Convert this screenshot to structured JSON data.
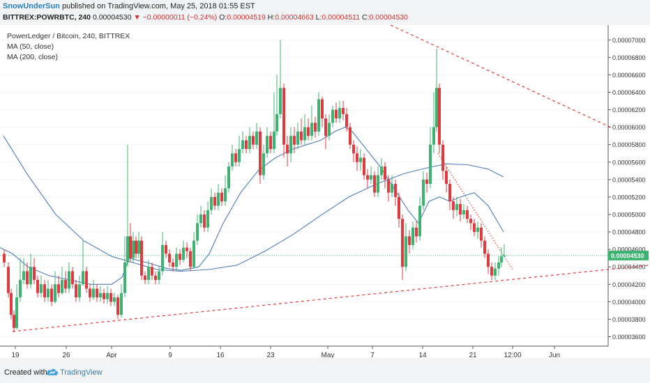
{
  "header": {
    "author": "SnowUnderSun",
    "published": "published on TradingView.com, May 25, 2018 01:55 EST",
    "symbol": "BITTREX:POWRBTC, 240",
    "last": "0.00004530",
    "change": "▼ −0.00000011 (−0.24%)",
    "o_label": "O:",
    "o_value": "0.00004519",
    "h_label": "H:",
    "h_value": "0.00004663",
    "l_label": "L:",
    "l_value": "0.00004511",
    "c_label": "C:",
    "c_value": "0.00004530"
  },
  "legend": {
    "title": "PowerLedger / Bitcoin, 240, BITTREX",
    "ma50": "MA (50, close)",
    "ma200": "MA (200, close)"
  },
  "footer": {
    "created_with": "Created with",
    "brand": "TradingView"
  },
  "colors": {
    "up": "#3cb371",
    "down": "#e0393e",
    "ma": "#4f7cba",
    "trend": "#e53935",
    "price_tag": "#3cb371"
  },
  "chart_data": {
    "type": "candlestick",
    "title": "PowerLedger / Bitcoin, 240, BITTREX",
    "x_ticks": [
      "19",
      "26",
      "Apr",
      "9",
      "16",
      "23",
      "May",
      "7",
      "14",
      "21",
      "12:00",
      "Jun"
    ],
    "y_ticks": [
      "0.00007000",
      "0.00006800",
      "0.00006600",
      "0.00006400",
      "0.00006200",
      "0.00006000",
      "0.00005800",
      "0.00005600",
      "0.00005400",
      "0.00005200",
      "0.00005000",
      "0.00004800",
      "0.00004600",
      "0.00004400",
      "0.00004200",
      "0.00004000",
      "0.00003800",
      "0.00003600"
    ],
    "ylim": [
      3.5e-05,
      7.17e-05
    ],
    "current_price": "0.00004530",
    "ma50": [
      [
        0,
        4.62e-05
      ],
      [
        18,
        4.55e-05
      ],
      [
        40,
        4.4e-05
      ],
      [
        70,
        4.3e-05
      ],
      [
        100,
        4.25e-05
      ],
      [
        130,
        4.2e-05
      ],
      [
        160,
        4.2e-05
      ],
      [
        175,
        4.28e-05
      ],
      [
        185,
        4.5e-05
      ],
      [
        210,
        4.45e-05
      ],
      [
        240,
        4.38e-05
      ],
      [
        260,
        4.36e-05
      ],
      [
        285,
        4.4e-05
      ],
      [
        300,
        4.55e-05
      ],
      [
        320,
        4.9e-05
      ],
      [
        345,
        5.25e-05
      ],
      [
        370,
        5.5e-05
      ],
      [
        395,
        5.65e-05
      ],
      [
        420,
        5.75e-05
      ],
      [
        440,
        5.8e-05
      ],
      [
        460,
        5.85e-05
      ],
      [
        480,
        5.95e-05
      ],
      [
        495,
        6e-05
      ],
      [
        505,
        5.95e-05
      ],
      [
        525,
        5.75e-05
      ],
      [
        545,
        5.55e-05
      ],
      [
        565,
        5.3e-05
      ],
      [
        585,
        5.05e-05
      ],
      [
        600,
        4.9e-05
      ],
      [
        615,
        5.15e-05
      ],
      [
        630,
        5.2e-05
      ],
      [
        645,
        5.15e-05
      ],
      [
        660,
        5.2e-05
      ],
      [
        680,
        5.25e-05
      ],
      [
        700,
        5.1e-05
      ],
      [
        722,
        4.8e-05
      ]
    ],
    "ma200": [
      [
        5,
        5.9e-05
      ],
      [
        40,
        5.45e-05
      ],
      [
        80,
        5e-05
      ],
      [
        120,
        4.7e-05
      ],
      [
        160,
        4.52e-05
      ],
      [
        190,
        4.45e-05
      ],
      [
        225,
        4.37e-05
      ],
      [
        260,
        4.35e-05
      ],
      [
        300,
        4.37e-05
      ],
      [
        340,
        4.42e-05
      ],
      [
        380,
        4.58e-05
      ],
      [
        420,
        4.77e-05
      ],
      [
        460,
        4.99e-05
      ],
      [
        500,
        5.2e-05
      ],
      [
        540,
        5.35e-05
      ],
      [
        580,
        5.47e-05
      ],
      [
        610,
        5.53e-05
      ],
      [
        640,
        5.58e-05
      ],
      [
        670,
        5.57e-05
      ],
      [
        700,
        5.52e-05
      ],
      [
        722,
        5.43e-05
      ]
    ],
    "trend_lower": [
      [
        18,
        3.66e-05
      ],
      [
        932,
        4.42e-05
      ]
    ],
    "trend_upper": [
      [
        560,
        7.17e-05
      ],
      [
        878,
        5.99e-05
      ]
    ],
    "trend_local": [
      [
        628,
        5.7e-05
      ],
      [
        735,
        4.37e-05
      ]
    ],
    "candles": [
      [
        6,
        4.55e-05,
        4.45e-05,
        4.6e-05,
        4.4e-05
      ],
      [
        12,
        4.4e-05,
        4.1e-05,
        4.45e-05,
        4.05e-05
      ],
      [
        16,
        4.1e-05,
        3.85e-05,
        4.15e-05,
        3.8e-05
      ],
      [
        20,
        3.85e-05,
        3.7e-05,
        3.9e-05,
        3.65e-05
      ],
      [
        24,
        3.7e-05,
        4.05e-05,
        4.2e-05,
        3.68e-05
      ],
      [
        29,
        4.05e-05,
        4.25e-05,
        4.5e-05,
        4e-05
      ],
      [
        34,
        4.25e-05,
        4.35e-05,
        4.5e-05,
        4.2e-05
      ],
      [
        39,
        4.35e-05,
        4.2e-05,
        4.45e-05,
        4.15e-05
      ],
      [
        44,
        4.2e-05,
        4.4e-05,
        4.55e-05,
        4.15e-05
      ],
      [
        49,
        4.4e-05,
        4.25e-05,
        4.5e-05,
        4.2e-05
      ],
      [
        54,
        4.25e-05,
        4.1e-05,
        4.3e-05,
        4.05e-05
      ],
      [
        59,
        4.1e-05,
        4.2e-05,
        4.3e-05,
        4.05e-05
      ],
      [
        64,
        4.2e-05,
        4.05e-05,
        4.25e-05,
        4e-05
      ],
      [
        69,
        4.05e-05,
        4.15e-05,
        4.25e-05,
        4e-05
      ],
      [
        74,
        4.15e-05,
        4e-05,
        4.2e-05,
        3.95e-05
      ],
      [
        79,
        4e-05,
        4.2e-05,
        4.35e-05,
        3.98e-05
      ],
      [
        84,
        4.2e-05,
        4.1e-05,
        4.3e-05,
        4.05e-05
      ],
      [
        89,
        4.1e-05,
        4.25e-05,
        4.4e-05,
        4.08e-05
      ],
      [
        94,
        4.25e-05,
        4.15e-05,
        4.35e-05,
        4.1e-05
      ],
      [
        99,
        4.15e-05,
        4.35e-05,
        4.45e-05,
        4.1e-05
      ],
      [
        104,
        4.35e-05,
        4.2e-05,
        4.4e-05,
        4.15e-05
      ],
      [
        109,
        4.2e-05,
        4.05e-05,
        4.25e-05,
        4e-05
      ],
      [
        114,
        4.05e-05,
        4.2e-05,
        4.3e-05,
        4e-05
      ],
      [
        119,
        4.2e-05,
        4.35e-05,
        4.7e-05,
        4.18e-05
      ],
      [
        124,
        4.35e-05,
        4.15e-05,
        4.4e-05,
        4.1e-05
      ],
      [
        129,
        4.15e-05,
        4.05e-05,
        4.2e-05,
        4e-05
      ],
      [
        134,
        4.05e-05,
        4.15e-05,
        4.25e-05,
        4.02e-05
      ],
      [
        139,
        4.15e-05,
        4.05e-05,
        4.2e-05,
        4e-05
      ],
      [
        144,
        4.05e-05,
        4.1e-05,
        4.18e-05,
        4e-05
      ],
      [
        149,
        4.1e-05,
        4.03e-05,
        4.15e-05,
        3.98e-05
      ],
      [
        154,
        4.03e-05,
        4.1e-05,
        4.18e-05,
        3.98e-05
      ],
      [
        159,
        4.1e-05,
        4e-05,
        4.15e-05,
        3.95e-05
      ],
      [
        164,
        4e-05,
        4.05e-05,
        4.1e-05,
        3.95e-05
      ],
      [
        169,
        4.05e-05,
        3.85e-05,
        4.08e-05,
        3.8e-05
      ],
      [
        174,
        3.85e-05,
        4.1e-05,
        4.2e-05,
        3.82e-05
      ],
      [
        179,
        4.1e-05,
        4.45e-05,
        4.75e-05,
        4.05e-05
      ],
      [
        183,
        4.45e-05,
        4.75e-05,
        5.8e-05,
        4.4e-05
      ],
      [
        187,
        4.75e-05,
        4.5e-05,
        4.9e-05,
        4.45e-05
      ],
      [
        191,
        4.5e-05,
        4.7e-05,
        4.8e-05,
        4.45e-05
      ],
      [
        195,
        4.7e-05,
        4.55e-05,
        4.75e-05,
        4.5e-05
      ],
      [
        199,
        4.55e-05,
        4.7e-05,
        4.8e-05,
        4.5e-05
      ],
      [
        203,
        4.7e-05,
        4.3e-05,
        4.75e-05,
        4.25e-05
      ],
      [
        208,
        4.3e-05,
        4.25e-05,
        4.35e-05,
        4.2e-05
      ],
      [
        213,
        4.25e-05,
        4.4e-05,
        4.48e-05,
        4.2e-05
      ],
      [
        218,
        4.4e-05,
        4.3e-05,
        4.45e-05,
        4.25e-05
      ],
      [
        223,
        4.3e-05,
        4.25e-05,
        4.35e-05,
        4.2e-05
      ],
      [
        228,
        4.25e-05,
        4.35e-05,
        4.4e-05,
        4.2e-05
      ],
      [
        233,
        4.35e-05,
        4.65e-05,
        4.8e-05,
        4.3e-05
      ],
      [
        238,
        4.65e-05,
        4.55e-05,
        4.7e-05,
        4.5e-05
      ],
      [
        243,
        4.55e-05,
        4.45e-05,
        4.6e-05,
        4.4e-05
      ],
      [
        248,
        4.45e-05,
        4.4e-05,
        4.5e-05,
        4.35e-05
      ],
      [
        253,
        4.4e-05,
        4.55e-05,
        4.62e-05,
        4.35e-05
      ],
      [
        258,
        4.55e-05,
        4.48e-05,
        4.6e-05,
        4.42e-05
      ],
      [
        263,
        4.48e-05,
        4.62e-05,
        4.7e-05,
        4.45e-05
      ],
      [
        268,
        4.62e-05,
        4.58e-05,
        4.68e-05,
        4.5e-05
      ],
      [
        273,
        4.58e-05,
        4.4e-05,
        4.62e-05,
        4.35e-05
      ],
      [
        278,
        4.4e-05,
        4.7e-05,
        4.8e-05,
        4.38e-05
      ],
      [
        283,
        4.7e-05,
        4.9e-05,
        5e-05,
        4.65e-05
      ],
      [
        288,
        4.9e-05,
        5e-05,
        5.1e-05,
        4.85e-05
      ],
      [
        293,
        5e-05,
        4.85e-05,
        5.05e-05,
        4.8e-05
      ],
      [
        298,
        4.85e-05,
        5.05e-05,
        5.15e-05,
        4.8e-05
      ],
      [
        303,
        5.05e-05,
        5.2e-05,
        5.3e-05,
        5e-05
      ],
      [
        308,
        5.2e-05,
        5.1e-05,
        5.25e-05,
        5.05e-05
      ],
      [
        313,
        5.1e-05,
        5.25e-05,
        5.35e-05,
        5.05e-05
      ],
      [
        318,
        5.25e-05,
        5.15e-05,
        5.3e-05,
        5.1e-05
      ],
      [
        323,
        5.15e-05,
        5.3e-05,
        5.45e-05,
        5.1e-05
      ],
      [
        328,
        5.3e-05,
        5.55e-05,
        5.6e-05,
        5.25e-05
      ],
      [
        333,
        5.55e-05,
        5.7e-05,
        5.8e-05,
        5.5e-05
      ],
      [
        338,
        5.7e-05,
        5.6e-05,
        5.75e-05,
        5.55e-05
      ],
      [
        343,
        5.6e-05,
        5.75e-05,
        5.9e-05,
        5.55e-05
      ],
      [
        348,
        5.75e-05,
        5.85e-05,
        5.95e-05,
        5.7e-05
      ],
      [
        353,
        5.85e-05,
        5.75e-05,
        5.9e-05,
        5.7e-05
      ],
      [
        358,
        5.75e-05,
        5.9e-05,
        6e-05,
        5.7e-05
      ],
      [
        363,
        5.9e-05,
        5.8e-05,
        5.95e-05,
        5.75e-05
      ],
      [
        368,
        5.8e-05,
        5.95e-05,
        6.05e-05,
        5.75e-05
      ],
      [
        373,
        5.95e-05,
        5.45e-05,
        6e-05,
        5.35e-05
      ],
      [
        378,
        5.45e-05,
        5.7e-05,
        5.8e-05,
        5.4e-05
      ],
      [
        383,
        5.7e-05,
        5.9e-05,
        6e-05,
        5.65e-05
      ],
      [
        388,
        5.9e-05,
        5.75e-05,
        5.95e-05,
        5.7e-05
      ],
      [
        393,
        5.75e-05,
        5.95e-05,
        6.4e-05,
        5.7e-05
      ],
      [
        397,
        5.95e-05,
        6.15e-05,
        6.6e-05,
        5.9e-05
      ],
      [
        402,
        6.15e-05,
        6.45e-05,
        7e-05,
        6.1e-05
      ],
      [
        407,
        6.45e-05,
        5.8e-05,
        6.5e-05,
        5.65e-05
      ],
      [
        412,
        5.8e-05,
        5.7e-05,
        5.9e-05,
        5.55e-05
      ],
      [
        417,
        5.7e-05,
        5.9e-05,
        6e-05,
        5.6e-05
      ],
      [
        422,
        5.9e-05,
        5.8e-05,
        6e-05,
        5.7e-05
      ],
      [
        427,
        5.8e-05,
        5.95e-05,
        6.05e-05,
        5.75e-05
      ],
      [
        432,
        5.95e-05,
        5.85e-05,
        6.1e-05,
        5.8e-05
      ],
      [
        437,
        5.85e-05,
        6e-05,
        6.15e-05,
        5.8e-05
      ],
      [
        442,
        6e-05,
        5.9e-05,
        6.1e-05,
        5.85e-05
      ],
      [
        447,
        5.9e-05,
        6.05e-05,
        6.25e-05,
        5.85e-05
      ],
      [
        452,
        6.05e-05,
        5.95e-05,
        6.12e-05,
        5.88e-05
      ],
      [
        457,
        5.95e-05,
        6.32e-05,
        6.4e-05,
        5.9e-05
      ],
      [
        462,
        6.32e-05,
        6.1e-05,
        6.35e-05,
        6e-05
      ],
      [
        467,
        6.1e-05,
        5.9e-05,
        6.15e-05,
        5.75e-05
      ],
      [
        472,
        5.9e-05,
        6.05e-05,
        6.15e-05,
        5.85e-05
      ],
      [
        477,
        6.05e-05,
        6.2e-05,
        6.25e-05,
        6e-05
      ],
      [
        482,
        6.2e-05,
        6.1e-05,
        6.28e-05,
        6.05e-05
      ],
      [
        487,
        6.1e-05,
        6.22e-05,
        6.3e-05,
        6.05e-05
      ],
      [
        492,
        6.22e-05,
        6.15e-05,
        6.3e-05,
        6.08e-05
      ],
      [
        497,
        6.15e-05,
        6e-05,
        6.22e-05,
        5.95e-05
      ],
      [
        502,
        6e-05,
        5.8e-05,
        6.05e-05,
        5.75e-05
      ],
      [
        507,
        5.8e-05,
        5.7e-05,
        5.85e-05,
        5.6e-05
      ],
      [
        512,
        5.7e-05,
        5.6e-05,
        5.78e-05,
        5.5e-05
      ],
      [
        517,
        5.6e-05,
        5.65e-05,
        5.75e-05,
        5.5e-05
      ],
      [
        522,
        5.65e-05,
        5.45e-05,
        5.7e-05,
        5.4e-05
      ],
      [
        527,
        5.45e-05,
        5.4e-05,
        5.52e-05,
        5.3e-05
      ],
      [
        532,
        5.4e-05,
        5.45e-05,
        5.55e-05,
        5.35e-05
      ],
      [
        537,
        5.45e-05,
        5.25e-05,
        5.5e-05,
        5.2e-05
      ],
      [
        542,
        5.25e-05,
        5.45e-05,
        5.55e-05,
        5.2e-05
      ],
      [
        547,
        5.45e-05,
        5.55e-05,
        5.65e-05,
        5.4e-05
      ],
      [
        552,
        5.55e-05,
        5.4e-05,
        5.6e-05,
        5.3e-05
      ],
      [
        557,
        5.4e-05,
        5.25e-05,
        5.45e-05,
        5.15e-05
      ],
      [
        562,
        5.25e-05,
        5.35e-05,
        5.45e-05,
        5.2e-05
      ],
      [
        567,
        5.35e-05,
        5.2e-05,
        5.4e-05,
        5.1e-05
      ],
      [
        572,
        5.2e-05,
        4.95e-05,
        5.25e-05,
        4.85e-05
      ],
      [
        577,
        4.95e-05,
        4.4e-05,
        5e-05,
        4.25e-05
      ],
      [
        582,
        4.4e-05,
        4.75e-05,
        4.9e-05,
        4.35e-05
      ],
      [
        587,
        4.75e-05,
        4.65e-05,
        4.82e-05,
        4.55e-05
      ],
      [
        592,
        4.65e-05,
        4.85e-05,
        4.92e-05,
        4.6e-05
      ],
      [
        597,
        4.85e-05,
        4.75e-05,
        4.92e-05,
        4.68e-05
      ],
      [
        602,
        4.75e-05,
        5.1e-05,
        5.2e-05,
        4.7e-05
      ],
      [
        607,
        5.1e-05,
        5.4e-05,
        5.5e-05,
        5.05e-05
      ],
      [
        612,
        5.4e-05,
        5.35e-05,
        5.48e-05,
        5.25e-05
      ],
      [
        617,
        5.35e-05,
        5.8e-05,
        6e-05,
        5.3e-05
      ],
      [
        622,
        5.8e-05,
        6e-05,
        6.4e-05,
        5.7e-05
      ],
      [
        626,
        6e-05,
        6.45e-05,
        6.9e-05,
        5.95e-05
      ],
      [
        630,
        6.45e-05,
        5.8e-05,
        6.5e-05,
        5.7e-05
      ],
      [
        635,
        5.8e-05,
        5.5e-05,
        5.85e-05,
        5.4e-05
      ],
      [
        640,
        5.5e-05,
        5.35e-05,
        5.55e-05,
        5.25e-05
      ],
      [
        645,
        5.35e-05,
        5.15e-05,
        5.4e-05,
        5.05e-05
      ],
      [
        650,
        5.15e-05,
        5.05e-05,
        5.2e-05,
        4.95e-05
      ],
      [
        655,
        5.05e-05,
        5.12e-05,
        5.2e-05,
        4.98e-05
      ],
      [
        660,
        5.12e-05,
        5e-05,
        5.18e-05,
        4.92e-05
      ],
      [
        665,
        5e-05,
        5.05e-05,
        5.12e-05,
        4.95e-05
      ],
      [
        670,
        5.05e-05,
        4.95e-05,
        5.1e-05,
        4.9e-05
      ],
      [
        675,
        4.95e-05,
        4.9e-05,
        5e-05,
        4.82e-05
      ],
      [
        680,
        4.9e-05,
        4.8e-05,
        4.95e-05,
        4.75e-05
      ],
      [
        685,
        4.8e-05,
        4.85e-05,
        4.92e-05,
        4.72e-05
      ],
      [
        690,
        4.85e-05,
        4.7e-05,
        4.9e-05,
        4.62e-05
      ],
      [
        695,
        4.7e-05,
        4.55e-05,
        4.75e-05,
        4.5e-05
      ],
      [
        700,
        4.55e-05,
        4.4e-05,
        4.6e-05,
        4.32e-05
      ],
      [
        705,
        4.4e-05,
        4.3e-05,
        4.45e-05,
        4.25e-05
      ],
      [
        710,
        4.3e-05,
        4.38e-05,
        4.45e-05,
        4.25e-05
      ],
      [
        715,
        4.38e-05,
        4.45e-05,
        4.52e-05,
        4.3e-05
      ],
      [
        719,
        4.45e-05,
        4.52e-05,
        4.62e-05,
        4.4e-05
      ],
      [
        723,
        4.52e-05,
        4.53e-05,
        4.66e-05,
        4.51e-05
      ]
    ]
  }
}
